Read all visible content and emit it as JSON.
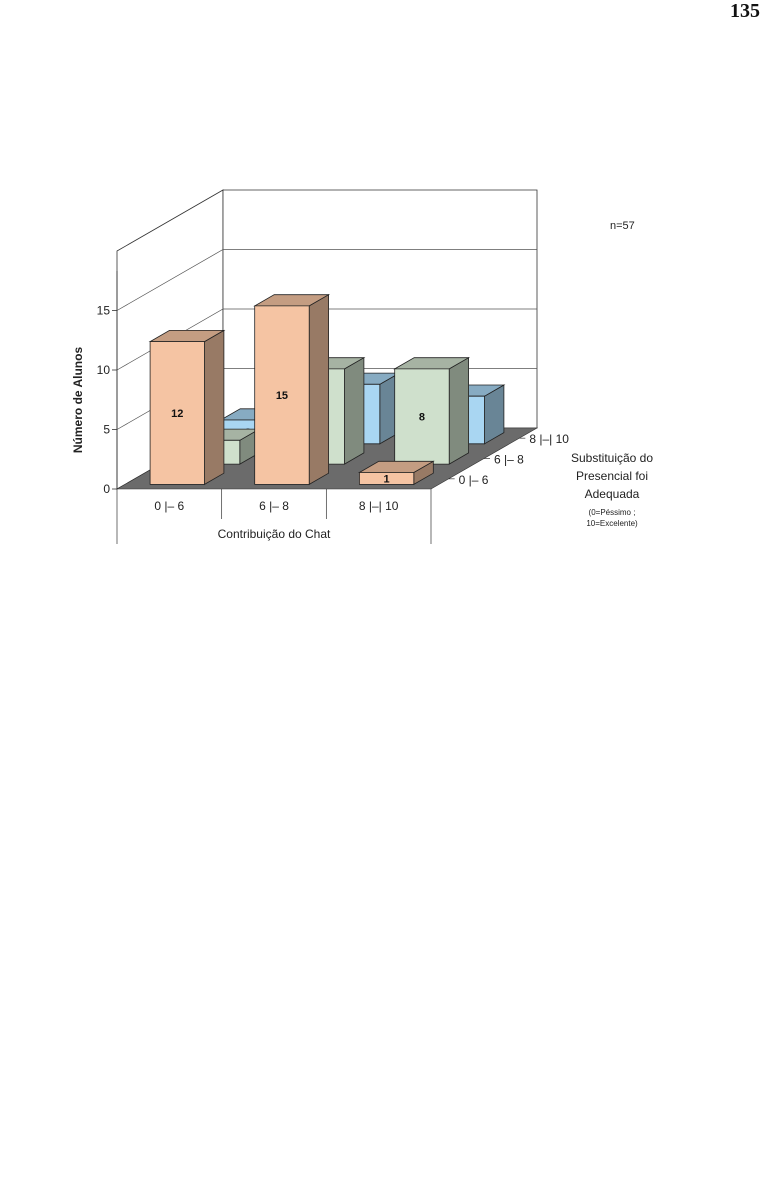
{
  "page_number": "135",
  "chart_data": {
    "type": "bar3d",
    "note": "n=57",
    "ylabel": "Número de Alunos",
    "xlabel": "Contribuição do Chat",
    "zlabel": "Substituição do Presencial foi Adequada",
    "zlabel_lines": [
      "Substituição do",
      "Presencial foi",
      "Adequada"
    ],
    "zlabel_sub_lines": [
      "(0=Péssimo ;",
      "10=Excelente)"
    ],
    "categories": [
      "0 |– 6",
      "6 |– 8",
      "8 |–| 10"
    ],
    "yticks": [
      "0",
      "5",
      "10",
      "15"
    ],
    "ylim": [
      0,
      20
    ],
    "series": [
      {
        "name": "0 |– 6",
        "values": [
          12,
          15,
          1
        ],
        "color": "#f5c4a3"
      },
      {
        "name": "6 |– 8",
        "values": [
          2,
          8,
          8
        ],
        "color": "#cfe0cc"
      },
      {
        "name": "8 |–| 10",
        "values": [
          2,
          5,
          4
        ],
        "color": "#a9d6f2"
      }
    ],
    "floor_color": "#6b6b6b"
  }
}
